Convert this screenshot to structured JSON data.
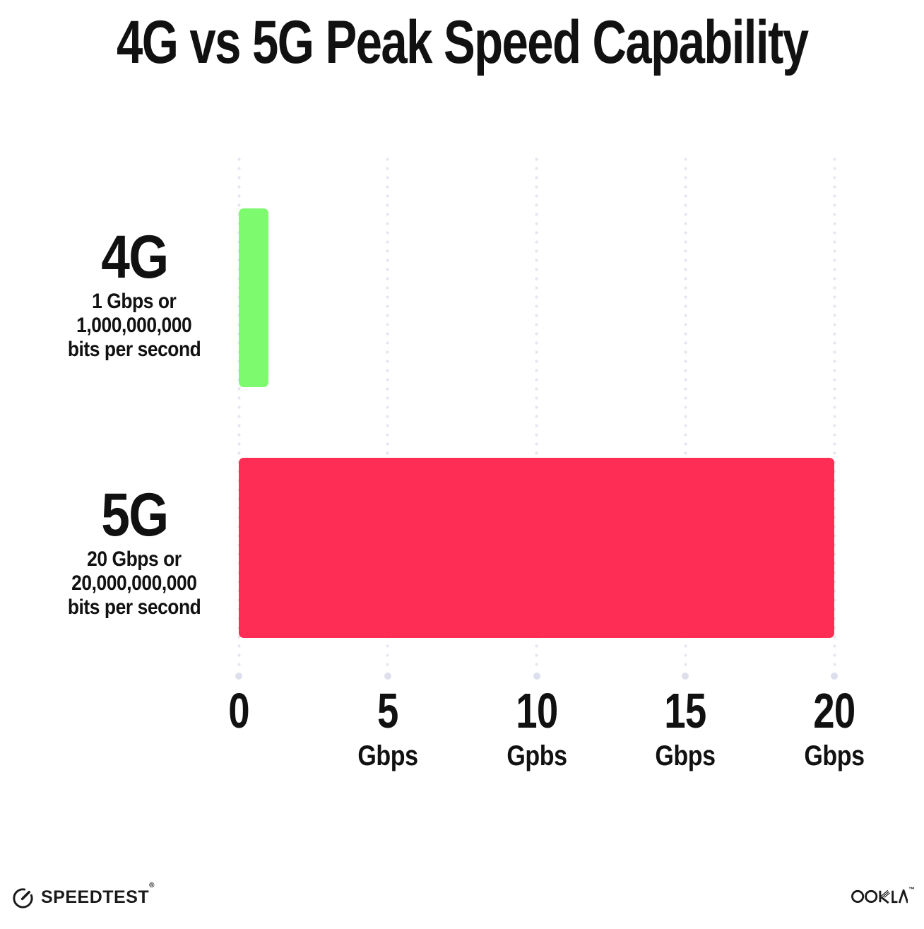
{
  "title": "4G vs 5G Peak Speed Capability",
  "chart_data": {
    "type": "bar",
    "orientation": "horizontal",
    "title": "4G vs 5G Peak Speed Capability",
    "categories": [
      "4G",
      "5G"
    ],
    "values": [
      1,
      20
    ],
    "xlim": [
      0,
      20
    ],
    "xlabel": "Gbps",
    "ylabel": "",
    "legend": "none",
    "grid": "vertical dotted gridlines at each tick, larger end dot at axis base",
    "bar_colors": [
      "#7DFA6E",
      "#FD2D55"
    ],
    "rows": [
      {
        "category": "4G",
        "value": 1,
        "color": "#7DFA6E",
        "desc_line1": "1 Gbps or",
        "desc_line2": "1,000,000,000",
        "desc_line3": "bits per second"
      },
      {
        "category": "5G",
        "value": 20,
        "color": "#FD2D55",
        "desc_line1": "20 Gbps or",
        "desc_line2": "20,000,000,000",
        "desc_line3": "bits per second"
      }
    ],
    "x_ticks": [
      {
        "value": 0,
        "label": "0",
        "unit": ""
      },
      {
        "value": 5,
        "label": "5",
        "unit": "Gbps"
      },
      {
        "value": 10,
        "label": "10",
        "unit": "Gpbs"
      },
      {
        "value": 15,
        "label": "15",
        "unit": "Gbps"
      },
      {
        "value": 20,
        "label": "20",
        "unit": "Gbps"
      }
    ]
  },
  "footer": {
    "speedtest_label": "SPEEDTEST",
    "speedtest_mark": "®",
    "ookla_label": "OOKLA",
    "ookla_mark": "™"
  },
  "colors": {
    "bar_4g": "#7DFA6E",
    "bar_5g": "#FD2D55",
    "gridline_dot": "#E3E5F0",
    "grid_end_dot": "#DDE0EC",
    "text": "#111111",
    "background": "#FFFFFF"
  }
}
